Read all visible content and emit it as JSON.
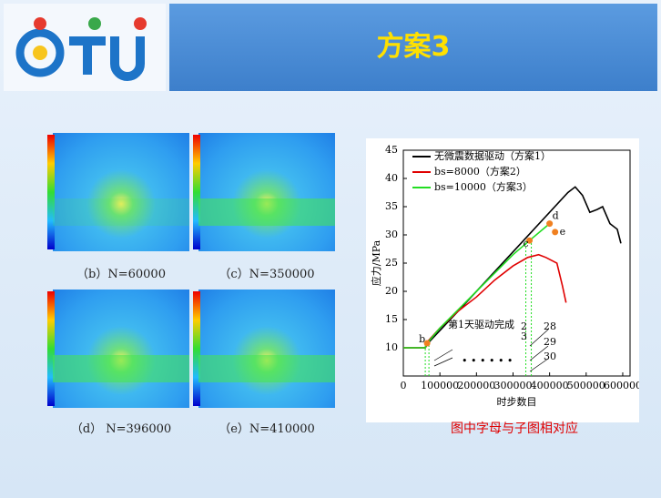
{
  "header": {
    "title": "方案3"
  },
  "panels": [
    {
      "caption": "（b）N=60000"
    },
    {
      "caption": "（c）N=350000"
    },
    {
      "caption": "（d） N=396000"
    },
    {
      "caption": "（e）N=410000"
    }
  ],
  "note": "图中字母与子图相对应",
  "chart_data": {
    "type": "line",
    "x_label": "时步数目",
    "y_label": "应力/MPa",
    "xlim": [
      0,
      620000
    ],
    "ylim": [
      5,
      45
    ],
    "xticks": [
      0,
      100000,
      200000,
      300000,
      400000,
      500000,
      600000
    ],
    "yticks": [
      10,
      15,
      20,
      25,
      30,
      35,
      40,
      45
    ],
    "series": [
      {
        "name": "无微震数据驱动（方案1）",
        "color": "#000000",
        "x": [
          0,
          60000,
          70000,
          150000,
          250000,
          350000,
          450000,
          470000,
          490000,
          510000,
          530000,
          545000,
          565000,
          585000,
          595000
        ],
        "values": [
          10,
          10,
          11,
          16.5,
          23.5,
          30.5,
          37.5,
          38.5,
          37,
          34,
          34.5,
          35,
          32,
          31,
          28.5
        ]
      },
      {
        "name": "bs=8000（方案2）",
        "color": "#e00000",
        "x": [
          0,
          60000,
          65000,
          100000,
          150000,
          200000,
          250000,
          300000,
          340000,
          370000,
          390000,
          405000,
          420000,
          435000,
          445000
        ],
        "values": [
          10,
          10,
          11,
          13.5,
          16.5,
          19,
          22,
          24.5,
          26,
          26.5,
          26,
          25.5,
          25,
          21,
          18
        ]
      },
      {
        "name": "bs=10000（方案3）",
        "color": "#22dd22",
        "x": [
          0,
          60000,
          65000,
          100000,
          200000,
          300000,
          345000,
          400000
        ],
        "values": [
          10,
          10,
          10.8,
          13.5,
          20,
          26.5,
          29,
          32
        ]
      }
    ],
    "points": {
      "labels": [
        "b",
        "c",
        "d",
        "e"
      ],
      "x": [
        65000,
        345000,
        400000,
        415000
      ],
      "values": [
        10.8,
        29,
        32,
        30.5
      ],
      "color": "#f08020"
    },
    "guide_lines": {
      "x": [
        60000,
        70000,
        335000,
        350000
      ],
      "color": "#22dd22"
    },
    "annotations": [
      "第1天驱动完成",
      "2",
      "3",
      "28",
      "29",
      "30",
      "• • •   • • •"
    ]
  }
}
